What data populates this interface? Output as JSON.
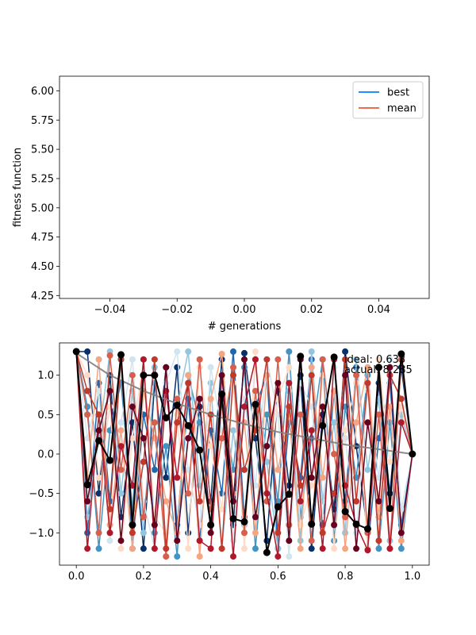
{
  "chart_data": [
    {
      "type": "line",
      "xlabel": "# generations",
      "ylabel": "fitness function",
      "xlim": [
        -0.055,
        0.055
      ],
      "ylim": [
        4.225,
        6.125
      ],
      "xticks": [
        -0.04,
        -0.02,
        0.0,
        0.02,
        0.04
      ],
      "xtick_labels": [
        "−0.04",
        "−0.02",
        "0.00",
        "0.02",
        "0.04"
      ],
      "yticks": [
        4.25,
        4.5,
        4.75,
        5.0,
        5.25,
        5.5,
        5.75,
        6.0
      ],
      "ytick_labels": [
        "4.25",
        "4.50",
        "4.75",
        "5.00",
        "5.25",
        "5.50",
        "5.75",
        "6.00"
      ],
      "legend_position": "top-right",
      "series": [
        {
          "name": "best",
          "color": "#1e90ff",
          "x": [],
          "y": []
        },
        {
          "name": "mean",
          "color": "#f06e50",
          "x": [],
          "y": []
        }
      ]
    },
    {
      "type": "line",
      "xlim": [
        -0.05,
        1.05
      ],
      "ylim": [
        -1.41,
        1.41
      ],
      "xticks": [
        0.0,
        0.2,
        0.4,
        0.6,
        0.8,
        1.0
      ],
      "xtick_labels": [
        "0.0",
        "0.2",
        "0.4",
        "0.6",
        "0.8",
        "1.0"
      ],
      "yticks": [
        -1.0,
        -0.5,
        0.0,
        0.5,
        1.0
      ],
      "ytick_labels": [
        "−1.0",
        "−0.5",
        "0.0",
        "0.5",
        "1.0"
      ],
      "annotations": [
        "ideal: 0.633",
        "actual: 8.285"
      ],
      "ideal_curve": {
        "color": "#808080",
        "x": [
          0.0,
          0.1,
          0.2,
          0.3,
          0.4,
          0.5,
          0.6,
          0.7,
          0.8,
          0.9,
          1.0
        ],
        "y": [
          1.28,
          1.0,
          0.8,
          0.64,
          0.5,
          0.38,
          0.28,
          0.2,
          0.12,
          0.06,
          0.0
        ]
      },
      "best_path": {
        "color": "#000000",
        "x": [
          0.0,
          0.033,
          0.067,
          0.1,
          0.133,
          0.167,
          0.2,
          0.233,
          0.267,
          0.3,
          0.333,
          0.367,
          0.4,
          0.433,
          0.467,
          0.5,
          0.533,
          0.567,
          0.6,
          0.633,
          0.667,
          0.7,
          0.733,
          0.767,
          0.8,
          0.833,
          0.867,
          0.9,
          0.933,
          0.967,
          1.0
        ],
        "y": [
          1.3,
          -0.39,
          0.17,
          -0.08,
          1.26,
          -0.9,
          1.0,
          1.0,
          0.46,
          0.62,
          0.36,
          0.05,
          -0.9,
          0.76,
          -0.82,
          -0.86,
          0.63,
          -1.25,
          -0.67,
          -0.51,
          1.24,
          -0.89,
          0.36,
          1.23,
          -0.73,
          -0.89,
          -0.95,
          1.1,
          -0.69,
          1.27,
          0.0
        ]
      },
      "candidate_paths": [
        {
          "color": "#08306b",
          "y": [
            1.3,
            1.3,
            -0.5,
            1.0,
            -0.8,
            0.4,
            -1.2,
            0.9,
            -0.3,
            1.1,
            -1.0,
            0.6,
            -0.6,
            1.2,
            -0.9,
            1.28,
            0.2,
            -1.1,
            0.8,
            -0.4,
            1.0,
            -1.2,
            0.5,
            -0.7,
            1.3,
            0.1,
            -1.0,
            0.9,
            -0.5,
            1.1,
            0.0
          ]
        },
        {
          "color": "#2166ac",
          "y": [
            1.3,
            -1.0,
            0.9,
            -0.6,
            1.2,
            -1.2,
            0.5,
            -0.2,
            1.1,
            -0.9,
            0.7,
            -1.1,
            0.3,
            -0.5,
            1.3,
            -0.8,
            0.6,
            1.0,
            -1.2,
            0.4,
            -0.3,
            1.2,
            -0.9,
            0.8,
            -0.6,
            1.1,
            -1.2,
            0.2,
            0.9,
            -0.9,
            0.0
          ]
        },
        {
          "color": "#4393c3",
          "y": [
            1.3,
            0.6,
            -1.2,
            0.3,
            0.9,
            -0.7,
            1.2,
            -1.0,
            0.1,
            -1.3,
            1.0,
            0.4,
            -0.9,
            0.7,
            -0.2,
            1.1,
            -1.2,
            0.5,
            -0.6,
            1.3,
            -0.8,
            0.2,
            1.2,
            -1.1,
            0.6,
            -0.3,
            1.0,
            -1.2,
            0.4,
            -1.2,
            0.0
          ]
        },
        {
          "color": "#92c5de",
          "y": [
            1.3,
            -0.8,
            0.2,
            1.3,
            -0.5,
            0.8,
            -1.0,
            1.1,
            -1.3,
            0.6,
            1.3,
            -0.4,
            0.9,
            -1.2,
            0.3,
            -0.9,
            1.2,
            -0.1,
            -1.2,
            0.8,
            -1.1,
            1.3,
            -0.6,
            0.4,
            -1.0,
            1.2,
            -0.2,
            0.7,
            -1.1,
            0.5,
            0.0
          ]
        },
        {
          "color": "#d1e5f0",
          "y": [
            1.3,
            0.2,
            0.8,
            -1.1,
            0.4,
            1.2,
            -0.6,
            -1.2,
            0.9,
            1.3,
            -0.2,
            -0.9,
            1.1,
            0.3,
            -1.1,
            0.7,
            -0.4,
            1.2,
            0.5,
            -1.3,
            0.9,
            0.6,
            -0.8,
            1.1,
            0.2,
            -1.0,
            0.8,
            -0.3,
            1.2,
            -0.7,
            0.0
          ]
        },
        {
          "color": "#fddbc7",
          "y": [
            1.3,
            1.0,
            -0.3,
            0.6,
            -1.2,
            0.2,
            1.2,
            -0.8,
            -1.0,
            0.5,
            -1.2,
            1.1,
            0.1,
            -0.7,
            0.9,
            -1.2,
            1.3,
            -0.5,
            0.7,
            1.1,
            -0.9,
            -0.4,
            1.0,
            -1.2,
            0.3,
            0.9,
            -1.2,
            1.2,
            -0.1,
            0.6,
            0.0
          ]
        },
        {
          "color": "#f4a582",
          "y": [
            1.3,
            -0.3,
            1.2,
            -0.9,
            0.3,
            -1.2,
            0.8,
            0.2,
            -0.6,
            -1.0,
            1.0,
            -1.3,
            0.7,
            1.27,
            -0.5,
            0.4,
            -1.0,
            1.0,
            -0.2,
            0.5,
            -1.2,
            1.1,
            -0.3,
            0.8,
            -1.2,
            0.4,
            1.1,
            -0.8,
            0.6,
            -1.1,
            0.0
          ]
        },
        {
          "color": "#d6604d",
          "y": [
            1.3,
            0.5,
            -1.0,
            1.25,
            -0.2,
            1.0,
            -0.8,
            0.4,
            -1.3,
            0.7,
            -0.5,
            1.2,
            -0.7,
            0.2,
            1.1,
            -1.0,
            0.8,
            -0.6,
            1.2,
            -0.9,
            0.5,
            -1.1,
            1.2,
            0.0,
            -0.8,
            1.0,
            -1.0,
            0.5,
            -1.2,
            1.2,
            0.0
          ]
        },
        {
          "color": "#b2182b",
          "y": [
            1.3,
            -1.2,
            0.5,
            -1.0,
            0.1,
            -0.4,
            1.2,
            -1.2,
            0.8,
            -0.3,
            0.9,
            -1.1,
            -1.2,
            0.7,
            -1.3,
            0.6,
            1.2,
            -0.5,
            -1.3,
            0.9,
            -0.6,
            0.3,
            -1.2,
            1.2,
            -0.4,
            -0.9,
            -1.22,
            1.1,
            -1.2,
            0.4,
            0.0
          ]
        },
        {
          "color": "#c0392b",
          "y": [
            1.3,
            0.8,
            0.5,
            -0.7,
            1.2,
            -1.0,
            -0.1,
            1.2,
            -1.2,
            0.4,
            0.9,
            -0.6,
            0.5,
            -1.2,
            1.0,
            -0.2,
            0.3,
            1.2,
            -1.0,
            0.6,
            -0.4,
            1.0,
            -1.0,
            -0.5,
            1.2,
            -0.6,
            0.9,
            -1.1,
            1.0,
            0.7,
            0.0
          ]
        },
        {
          "color": "#67001f",
          "y": [
            1.3,
            -0.6,
            0.3,
            0.8,
            -1.1,
            0.6,
            0.2,
            -0.9,
            1.1,
            -1.1,
            0.2,
            0.7,
            -1.0,
            1.0,
            -0.6,
            1.2,
            -0.8,
            0.1,
            0.9,
            -1.1,
            1.2,
            -0.3,
            0.6,
            -0.9,
            1.0,
            -1.2,
            0.4,
            -0.6,
            1.1,
            -1.0,
            0.0
          ]
        }
      ]
    }
  ]
}
